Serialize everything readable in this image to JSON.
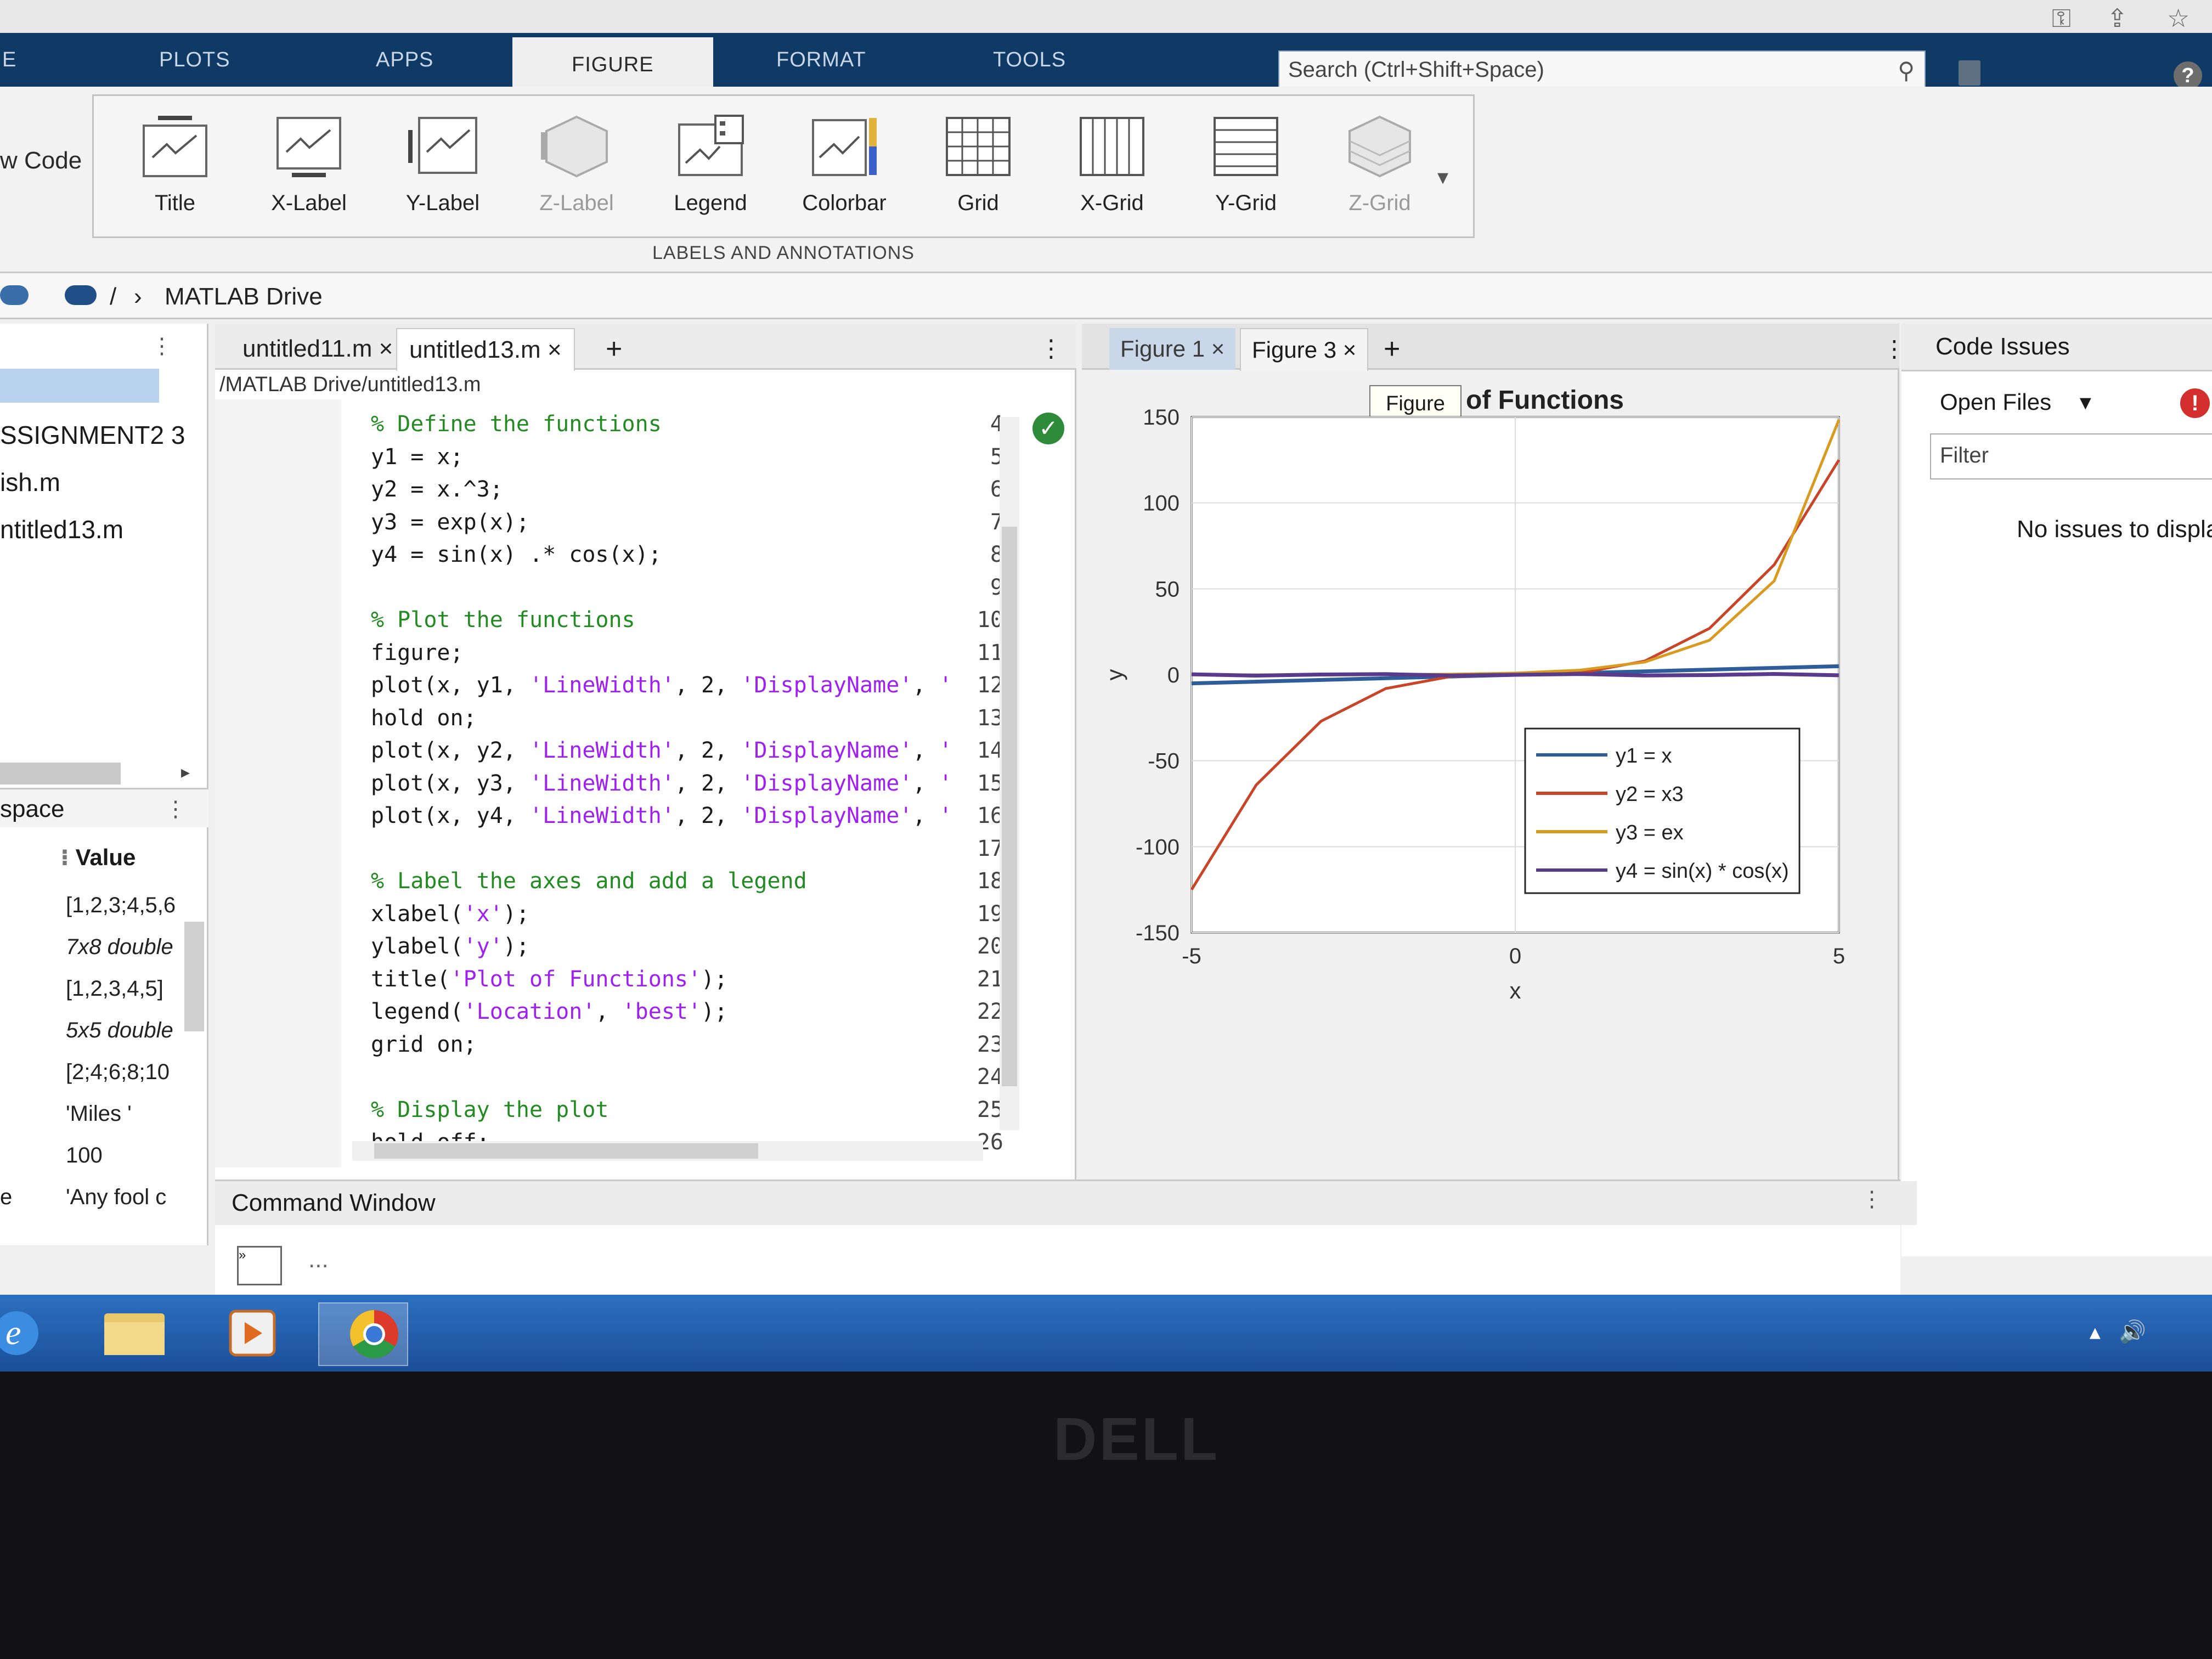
{
  "top_tabs": [
    "PLOTS",
    "APPS",
    "FIGURE",
    "FORMAT",
    "TOOLS"
  ],
  "active_tab": "FIGURE",
  "search": {
    "placeholder": "Search (Ctrl+Shift+Space)"
  },
  "ribbon": {
    "left_label": "w Code",
    "buttons": [
      "Title",
      "X-Label",
      "Y-Label",
      "Z-Label",
      "Legend",
      "Colorbar",
      "Grid",
      "X-Grid",
      "Y-Grid",
      "Z-Grid"
    ],
    "disabled": [
      "Z-Label",
      "Z-Grid"
    ],
    "group_label": "LABELS AND ANNOTATIONS"
  },
  "path": {
    "sep": "/",
    "folder": "MATLAB Drive"
  },
  "file_browser": {
    "items": [
      "SSIGNMENT2 3",
      "ish.m",
      "ntitled13.m"
    ],
    "workspace_title": "space",
    "value_header": "Value",
    "values": [
      "[1,2,3;4,5,6",
      "7x8 double",
      "[1,2,3,4,5]",
      "5x5 double",
      "[2;4;6;8;10",
      "'Miles '",
      "100",
      "'Any fool c"
    ],
    "last_name": "e"
  },
  "editor": {
    "tabs": [
      "untitled11.m",
      "untitled13.m"
    ],
    "path": "/MATLAB Drive/untitled13.m",
    "line_numbers": [
      "4",
      "5",
      "6",
      "7",
      "8",
      "9",
      "10",
      "11",
      "12",
      "13",
      "14",
      "15",
      "16",
      "17",
      "18",
      "19",
      "20",
      "21",
      "22",
      "23",
      "24",
      "25",
      "26"
    ],
    "lines": [
      {
        "t": "% Define the functions",
        "c": "cmt"
      },
      {
        "t": "y1 = x;"
      },
      {
        "t": "y2 = x.^3;"
      },
      {
        "t": "y3 = exp(x);"
      },
      {
        "t": "y4 = sin(x) .* cos(x);"
      },
      {
        "t": ""
      },
      {
        "t": "% Plot the functions",
        "c": "cmt"
      },
      {
        "t": "figure;"
      },
      {
        "t": "plot(x, y1, 'LineWidth', 2, 'DisplayName', '"
      },
      {
        "t": "hold on;"
      },
      {
        "t": "plot(x, y2, 'LineWidth', 2, 'DisplayName', '"
      },
      {
        "t": "plot(x, y3, 'LineWidth', 2, 'DisplayName', '"
      },
      {
        "t": "plot(x, y4, 'LineWidth', 2, 'DisplayName', '"
      },
      {
        "t": ""
      },
      {
        "t": "% Label the axes and add a legend",
        "c": "cmt"
      },
      {
        "t": "xlabel('x');"
      },
      {
        "t": "ylabel('y');"
      },
      {
        "t": "title('Plot of Functions');"
      },
      {
        "t": "legend('Location', 'best');"
      },
      {
        "t": "grid on;"
      },
      {
        "t": ""
      },
      {
        "t": "% Display the plot",
        "c": "cmt"
      },
      {
        "t": "hold off;"
      }
    ]
  },
  "figures": {
    "tabs": [
      "Figure 1",
      "Figure 3"
    ],
    "tooltip": "Figure",
    "title_visible": "of Functions"
  },
  "chart_data": {
    "type": "line",
    "title": "of Functions",
    "xlabel": "x",
    "ylabel": "y",
    "xlim": [
      -5,
      5
    ],
    "ylim": [
      -150,
      150
    ],
    "xticks": [
      -5,
      0,
      5
    ],
    "yticks": [
      150,
      100,
      50,
      0,
      -50,
      -100,
      -150
    ],
    "grid": true,
    "legend_position": "lower-right",
    "series": [
      {
        "name": "y1 = x",
        "color": "#2f5d9a",
        "x": [
          -5,
          0,
          5
        ],
        "y": [
          -5,
          0,
          5
        ]
      },
      {
        "name": "y2 = x3",
        "color": "#c8452a",
        "x": [
          -5,
          -4,
          -3,
          -2,
          -1,
          0,
          1,
          2,
          3,
          4,
          5
        ],
        "y": [
          -125,
          -64,
          -27,
          -8,
          -1,
          0,
          1,
          8,
          27,
          64,
          125
        ]
      },
      {
        "name": "y3 = ex",
        "color": "#d99a20",
        "x": [
          -5,
          -4,
          -3,
          -2,
          -1,
          0,
          1,
          2,
          3,
          4,
          5
        ],
        "y": [
          0.0067,
          0.018,
          0.05,
          0.14,
          0.37,
          1,
          2.72,
          7.39,
          20.09,
          54.6,
          148.4
        ]
      },
      {
        "name": "y4 = sin(x) * cos(x)",
        "color": "#5a3a8a",
        "x": [
          -5,
          -4,
          -3,
          -2,
          -1,
          0,
          1,
          2,
          3,
          4,
          5
        ],
        "y": [
          0.27,
          -0.49,
          0.14,
          0.38,
          -0.45,
          0,
          0.45,
          -0.38,
          -0.14,
          0.49,
          -0.27
        ]
      }
    ]
  },
  "code_issues": {
    "title": "Code Issues",
    "scope": "Open Files",
    "filter_placeholder": "Filter",
    "message": "No issues to displa"
  },
  "command_window": {
    "title": "Command Window",
    "dots": "..."
  },
  "monitor": {
    "brand": "DELL"
  }
}
